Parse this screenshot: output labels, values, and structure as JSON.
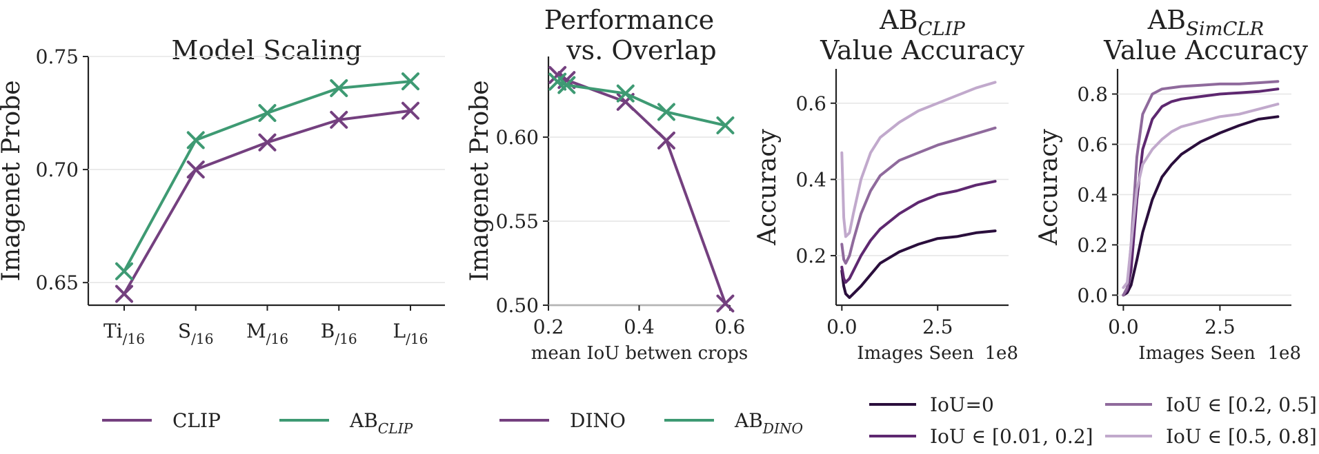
{
  "colors": {
    "clip": "#74407f",
    "ab": "#3e9a73",
    "iou_0": "#2a0e3c",
    "iou_1": "#5e2870",
    "iou_2": "#8f6a9c",
    "iou_3": "#c1a9cc"
  },
  "chart_data": [
    {
      "type": "line",
      "title": "Model Scaling",
      "xlabel": "",
      "ylabel": "Imagenet Probe",
      "categories": [
        {
          "base": "Ti",
          "sub": "/16"
        },
        {
          "base": "S",
          "sub": "/16"
        },
        {
          "base": "M",
          "sub": "/16"
        },
        {
          "base": "B",
          "sub": "/16"
        },
        {
          "base": "L",
          "sub": "/16"
        }
      ],
      "yticks": [
        "0.65",
        "0.70",
        "0.75"
      ],
      "ylim": [
        0.64,
        0.75
      ],
      "grid": true,
      "marker": "x",
      "series": [
        {
          "name": "CLIP",
          "color_key": "clip",
          "values": [
            0.645,
            0.7,
            0.712,
            0.722,
            0.726
          ]
        },
        {
          "name": "AB_CLIP",
          "color_key": "ab",
          "values": [
            0.655,
            0.713,
            0.725,
            0.736,
            0.739
          ]
        }
      ]
    },
    {
      "type": "line",
      "title_lines": [
        "Performance",
        "vs. Overlap"
      ],
      "xlabel": "mean IoU betwen crops",
      "ylabel": "Imagenet Probe",
      "xlim": [
        0.2,
        0.6
      ],
      "xticks": [
        "0.2",
        "0.4",
        "0.6"
      ],
      "ylim": [
        0.5,
        0.648
      ],
      "yticks": [
        "0.50",
        "0.55",
        "0.60"
      ],
      "grid": true,
      "marker": "x",
      "series": [
        {
          "name": "DINO",
          "color_key": "clip",
          "x": [
            0.22,
            0.24,
            0.37,
            0.46,
            0.59
          ],
          "values": [
            0.637,
            0.634,
            0.621,
            0.598,
            0.501
          ]
        },
        {
          "name": "AB_DINO",
          "color_key": "ab",
          "x": [
            0.22,
            0.24,
            0.37,
            0.46,
            0.59
          ],
          "values": [
            0.633,
            0.631,
            0.626,
            0.615,
            0.607
          ]
        }
      ]
    },
    {
      "type": "line",
      "title_lines": [
        "AB_CLIP",
        "Value Accuracy"
      ],
      "title_sub": "CLIP",
      "xlabel": "Images Seen",
      "x_multiplier": "1e8",
      "ylabel": "Accuracy",
      "xlim": [
        -0.15,
        4.35
      ],
      "xticks": [
        "0.0",
        "2.5"
      ],
      "ylim": [
        0.07,
        0.69
      ],
      "yticks": [
        "0.2",
        "0.4",
        "0.6"
      ],
      "grid": true,
      "series": [
        {
          "name": "IoU=0",
          "color_key": "iou_0",
          "x": [
            0,
            0.05,
            0.1,
            0.2,
            0.3,
            0.5,
            0.75,
            1.0,
            1.5,
            2.0,
            2.5,
            3.0,
            3.5,
            4.0
          ],
          "values": [
            0.16,
            0.12,
            0.1,
            0.09,
            0.1,
            0.12,
            0.15,
            0.18,
            0.21,
            0.23,
            0.245,
            0.25,
            0.26,
            0.265
          ]
        },
        {
          "name": "IoU ∈ [0.01, 0.2]",
          "color_key": "iou_1",
          "x": [
            0,
            0.05,
            0.1,
            0.2,
            0.3,
            0.5,
            0.75,
            1.0,
            1.5,
            2.0,
            2.5,
            3.0,
            3.5,
            4.0
          ],
          "values": [
            0.17,
            0.14,
            0.13,
            0.14,
            0.16,
            0.2,
            0.24,
            0.27,
            0.31,
            0.34,
            0.36,
            0.37,
            0.385,
            0.395
          ]
        },
        {
          "name": "IoU ∈ [0.2, 0.5]",
          "color_key": "iou_2",
          "x": [
            0,
            0.05,
            0.1,
            0.2,
            0.3,
            0.5,
            0.75,
            1.0,
            1.5,
            2.0,
            2.5,
            3.0,
            3.5,
            4.0
          ],
          "values": [
            0.23,
            0.19,
            0.18,
            0.2,
            0.24,
            0.31,
            0.37,
            0.41,
            0.45,
            0.47,
            0.49,
            0.505,
            0.52,
            0.535
          ]
        },
        {
          "name": "IoU ∈ [0.5, 0.8]",
          "color_key": "iou_3",
          "x": [
            0,
            0.05,
            0.1,
            0.2,
            0.3,
            0.5,
            0.75,
            1.0,
            1.5,
            2.0,
            2.5,
            3.0,
            3.5,
            4.0
          ],
          "values": [
            0.47,
            0.3,
            0.25,
            0.26,
            0.31,
            0.4,
            0.47,
            0.51,
            0.55,
            0.58,
            0.6,
            0.62,
            0.64,
            0.655
          ]
        }
      ]
    },
    {
      "type": "line",
      "title_lines": [
        "AB_SimCLR",
        "Value Accuracy"
      ],
      "title_sub": "SimCLR",
      "xlabel": "Images Seen",
      "x_multiplier": "1e8",
      "ylabel": "Accuracy",
      "xlim": [
        -0.15,
        4.35
      ],
      "xticks": [
        "0.0",
        "2.5"
      ],
      "ylim": [
        -0.04,
        0.9
      ],
      "yticks": [
        "0.0",
        "0.2",
        "0.4",
        "0.6",
        "0.8"
      ],
      "grid": true,
      "series": [
        {
          "name": "IoU=0",
          "color_key": "iou_0",
          "x": [
            0,
            0.1,
            0.2,
            0.35,
            0.5,
            0.75,
            1.0,
            1.25,
            1.5,
            2.0,
            2.5,
            3.0,
            3.5,
            4.0
          ],
          "values": [
            0.0,
            0.01,
            0.04,
            0.14,
            0.25,
            0.38,
            0.47,
            0.52,
            0.56,
            0.61,
            0.645,
            0.675,
            0.7,
            0.71
          ]
        },
        {
          "name": "IoU ∈ [0.01, 0.2]",
          "color_key": "iou_1",
          "x": [
            0,
            0.1,
            0.2,
            0.35,
            0.5,
            0.75,
            1.0,
            1.25,
            1.5,
            2.0,
            2.5,
            3.0,
            3.5,
            4.0
          ],
          "values": [
            0.0,
            0.02,
            0.1,
            0.38,
            0.58,
            0.7,
            0.75,
            0.77,
            0.78,
            0.79,
            0.8,
            0.805,
            0.81,
            0.82
          ]
        },
        {
          "name": "IoU ∈ [0.2, 0.5]",
          "color_key": "iou_2",
          "x": [
            0,
            0.1,
            0.2,
            0.35,
            0.5,
            0.75,
            1.0,
            1.25,
            1.5,
            2.0,
            2.5,
            3.0,
            3.5,
            4.0
          ],
          "values": [
            0.0,
            0.03,
            0.2,
            0.55,
            0.72,
            0.8,
            0.82,
            0.825,
            0.83,
            0.835,
            0.84,
            0.84,
            0.845,
            0.85
          ]
        },
        {
          "name": "IoU ∈ [0.5, 0.8]",
          "color_key": "iou_3",
          "x": [
            0,
            0.1,
            0.2,
            0.35,
            0.5,
            0.75,
            1.0,
            1.25,
            1.5,
            2.0,
            2.5,
            3.0,
            3.5,
            4.0
          ],
          "values": [
            0.03,
            0.05,
            0.2,
            0.42,
            0.52,
            0.58,
            0.62,
            0.65,
            0.67,
            0.69,
            0.71,
            0.72,
            0.74,
            0.76
          ]
        }
      ]
    }
  ],
  "legends": {
    "left": [
      {
        "label": "CLIP",
        "color_key": "clip"
      },
      {
        "label": "AB",
        "sub": "CLIP",
        "color_key": "ab"
      },
      {
        "label": "DINO",
        "color_key": "clip"
      },
      {
        "label": "AB",
        "sub": "DINO",
        "color_key": "ab"
      }
    ],
    "right": [
      {
        "label": "IoU=0",
        "color_key": "iou_0"
      },
      {
        "label": "IoU ∈ [0.01, 0.2]",
        "color_key": "iou_1"
      },
      {
        "label": "IoU ∈ [0.2, 0.5]",
        "color_key": "iou_2"
      },
      {
        "label": "IoU ∈ [0.5, 0.8]",
        "color_key": "iou_3"
      }
    ]
  }
}
